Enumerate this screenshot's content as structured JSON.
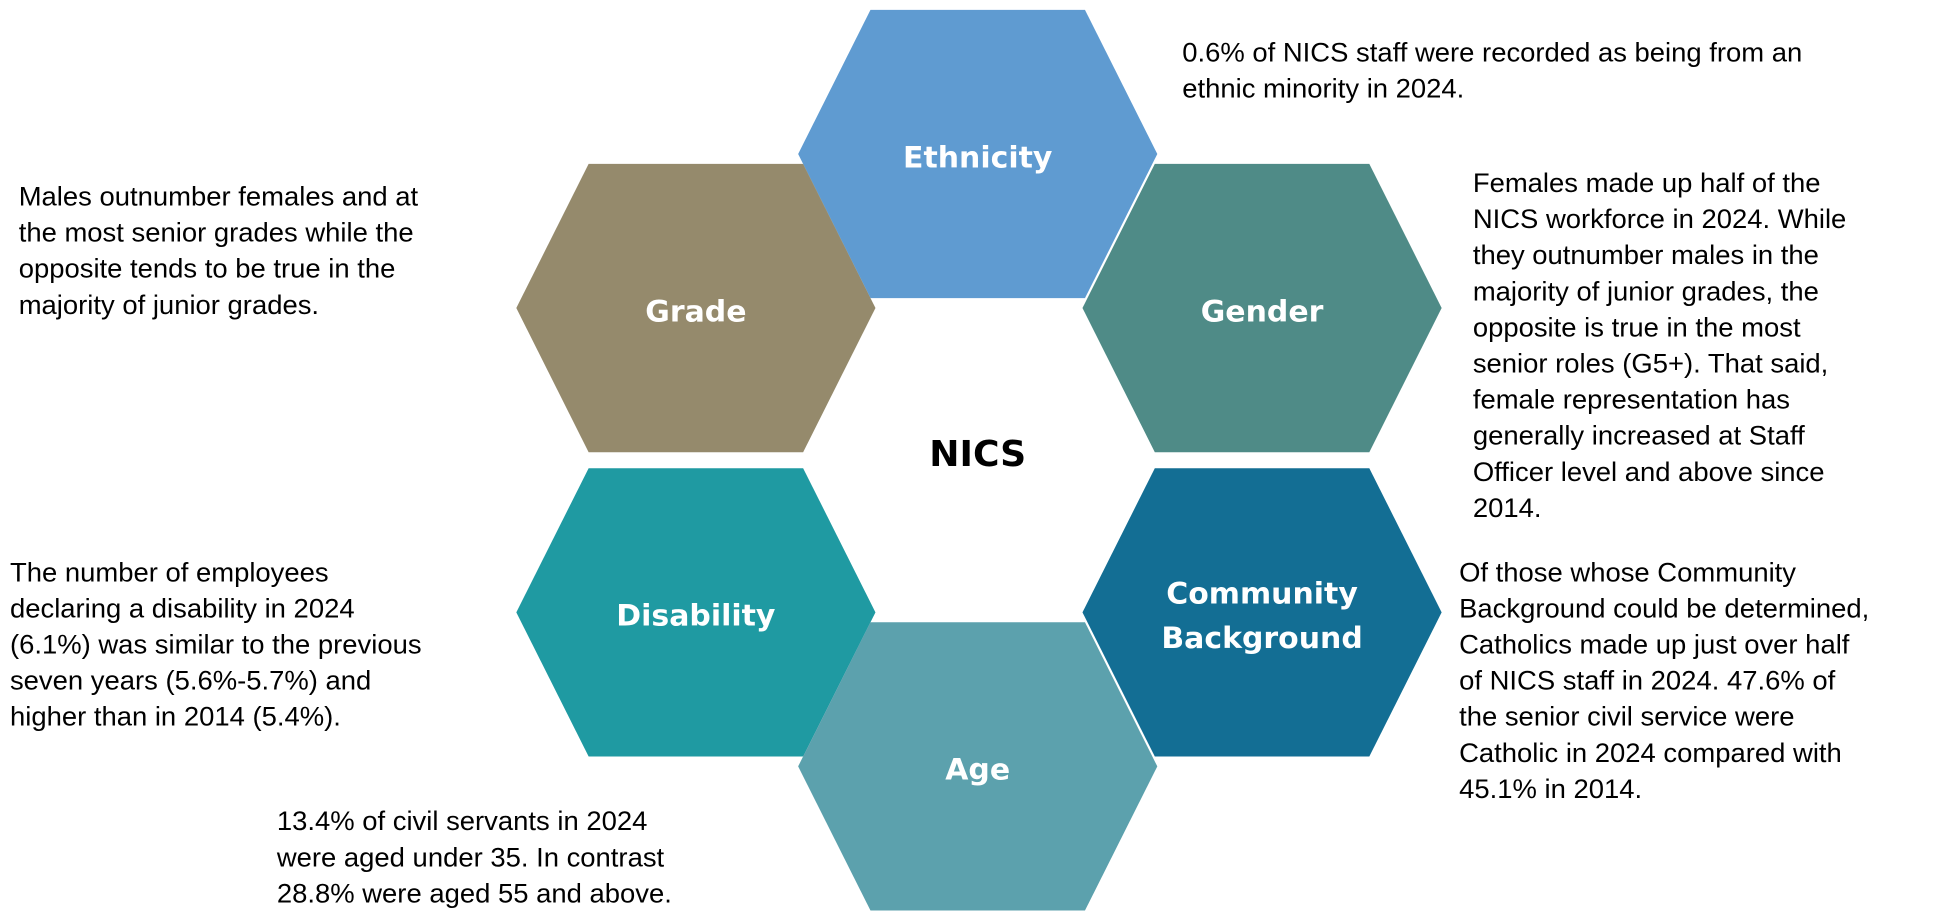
{
  "center": "NICS",
  "nodes": [
    {
      "label": [
        "Ethnicity"
      ],
      "color": "#5f9bd1",
      "description": [
        "0.6% of NICS staff were recorded as being from an",
        "ethnic minority in 2024."
      ]
    },
    {
      "label": [
        "Grade"
      ],
      "color": "#958a6c",
      "description": [
        "Males outnumber females and at",
        "the most senior grades while the",
        "opposite tends to be true in the",
        "majority of junior grades."
      ]
    },
    {
      "label": [
        "Gender"
      ],
      "color": "#4f8b87",
      "description": [
        "Females made up half of the",
        "NICS workforce in 2024. While",
        "they outnumber males in the",
        "majority of junior grades, the",
        "opposite is true in the most",
        "senior roles (G5+). That said,",
        "female representation has",
        "generally increased at Staff",
        "Officer level and above since",
        "2014."
      ]
    },
    {
      "label": [
        "Disability"
      ],
      "color": "#1f9aa2",
      "description": [
        "The number of employees",
        "declaring a disability in 2024",
        "(6.1%) was similar to  the previous",
        "seven years (5.6%-5.7%) and",
        "higher than in 2014 (5.4%)."
      ]
    },
    {
      "label": [
        "Community",
        "Background"
      ],
      "color": "#136e94",
      "description": [
        "Of those whose Community",
        "Background could be determined,",
        "Catholics made up just over half",
        "of NICS staff in 2024. 47.6% of",
        "the senior civil service were",
        "Catholic in 2024 compared with",
        "45.1% in 2014."
      ]
    },
    {
      "label": [
        "Age"
      ],
      "color": "#5ca1ad",
      "description": [
        "13.4% of civil servants in 2024",
        "were aged under 35. In contrast",
        "28.8% were aged 55 and above."
      ]
    }
  ]
}
